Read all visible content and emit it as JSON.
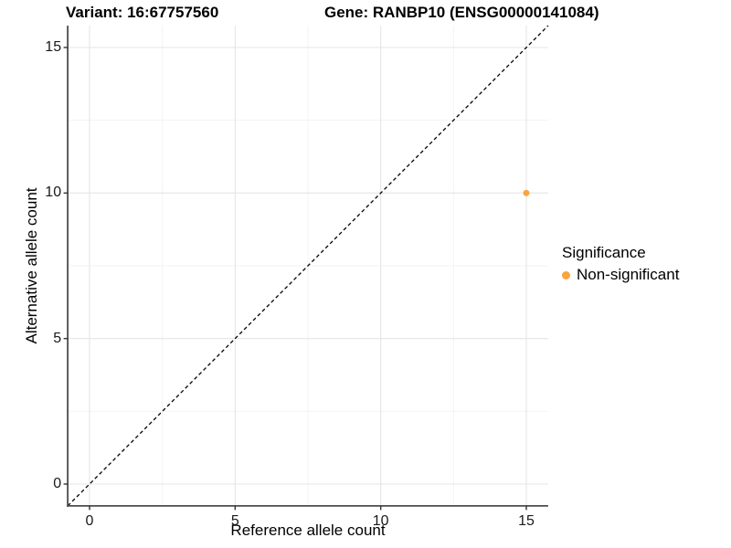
{
  "titles": {
    "variant": "Variant: 16:67757560",
    "gene": "Gene: RANBP10 (ENSG00000141084)"
  },
  "chart_data": {
    "type": "scatter",
    "title_left": "Variant: 16:67757560",
    "title_right": "Gene: RANBP10 (ENSG00000141084)",
    "xlabel": "Reference allele count",
    "ylabel": "Alternative allele count",
    "xlim": [
      -0.75,
      15.75
    ],
    "ylim": [
      -0.75,
      15.75
    ],
    "x_ticks": [
      0,
      5,
      10,
      15
    ],
    "y_ticks": [
      0,
      5,
      10,
      15
    ],
    "minor_ticks": [
      2.5,
      7.5,
      12.5
    ],
    "grid": true,
    "reference_line": {
      "type": "identity",
      "equation": "y = x",
      "style": "dashed",
      "color": "#000000"
    },
    "series": [
      {
        "name": "Non-significant",
        "color": "#F9A43C",
        "points": [
          {
            "x": 15,
            "y": 10
          }
        ]
      }
    ],
    "legend_title": "Significance",
    "legend_position": "right"
  },
  "colors": {
    "point": "#F9A43C",
    "grid_major": "#E5E5E5",
    "grid_minor": "#F2F2F2",
    "axis_line": "#4d4d4d",
    "tick_mark": "#333333",
    "text": "#000000",
    "background": "#ffffff"
  }
}
